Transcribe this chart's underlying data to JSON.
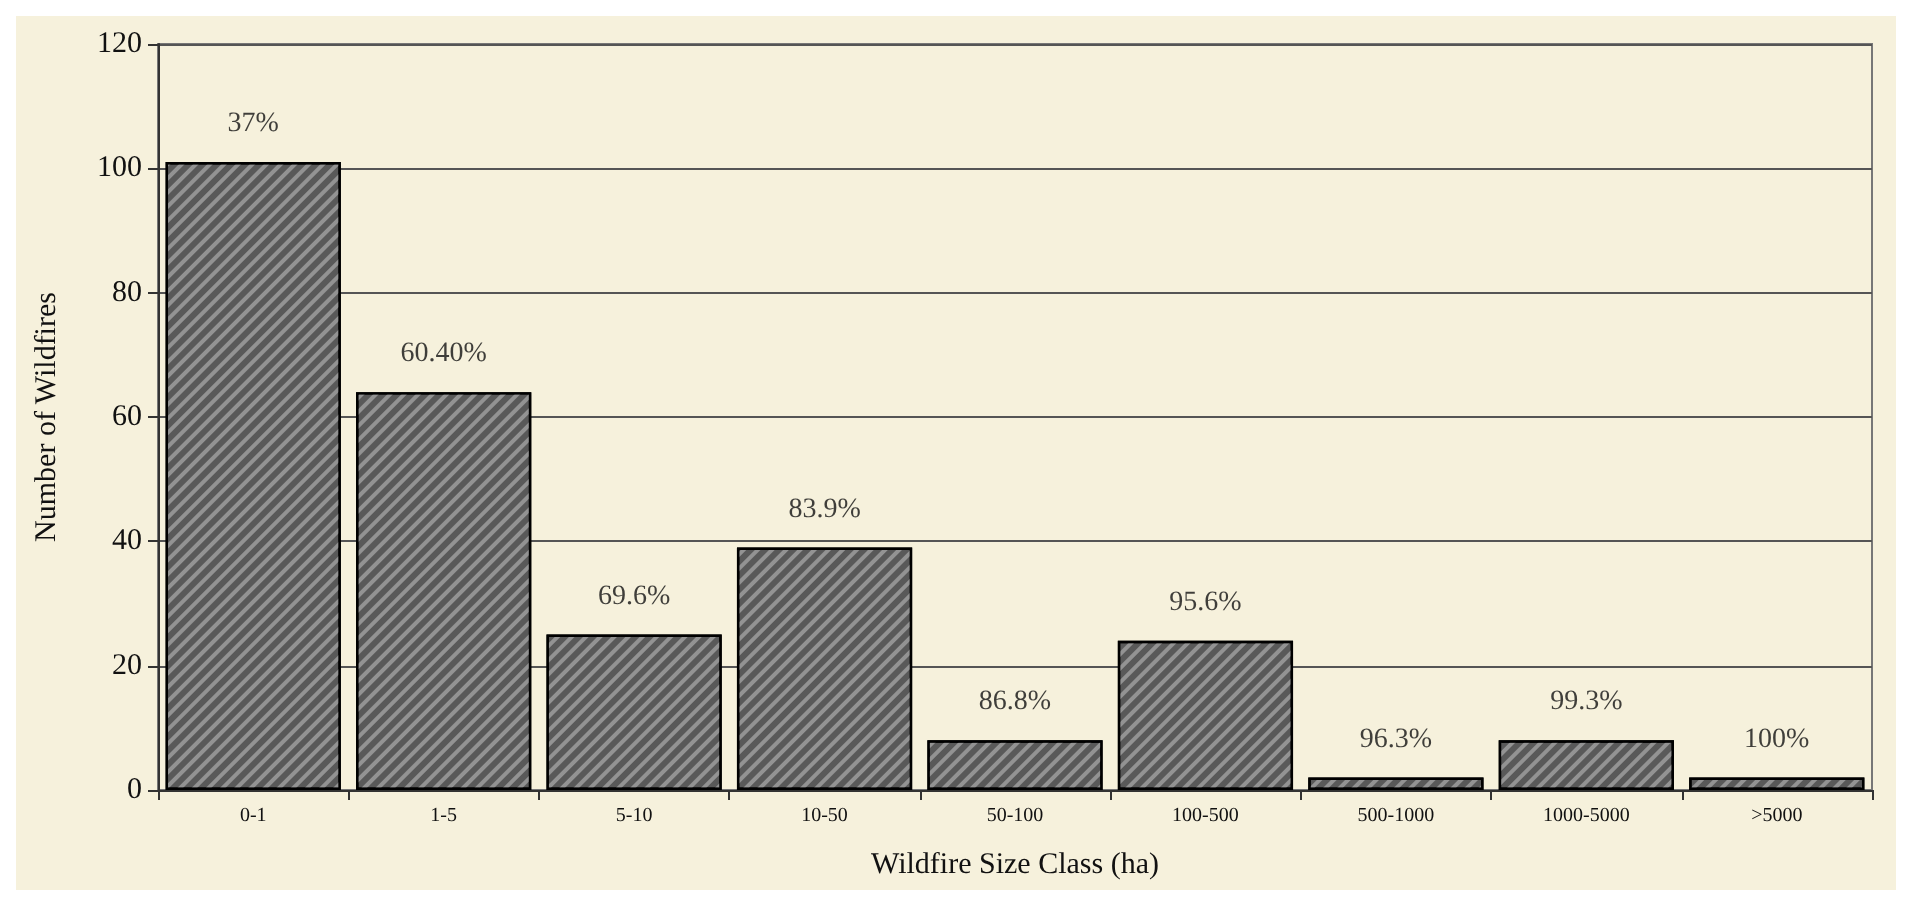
{
  "chart_data": {
    "type": "bar",
    "xlabel": "Wildfire Size Class (ha)",
    "ylabel": "Number of Wildfires",
    "categories": [
      "0-1",
      "1-5",
      "5-10",
      "10-50",
      "50-100",
      "100-500",
      "500-1000",
      "1000-5000",
      ">5000"
    ],
    "values": [
      101,
      64,
      25,
      39,
      8,
      24,
      2,
      8,
      2
    ],
    "annotations": [
      {
        "text": "37%",
        "x": "0-1",
        "y": 101
      },
      {
        "text": "60.40%",
        "x": "1-5",
        "y": 64
      },
      {
        "text": "69.6%",
        "x": "5-10",
        "y": 25
      },
      {
        "text": "83.9%",
        "x": "10-50",
        "y": 39
      },
      {
        "text": "86.8%",
        "x": "50-100",
        "y": 8
      },
      {
        "text": "95.6%",
        "x": "100-500",
        "y": 24
      },
      {
        "text": "96.3%",
        "x": "500-1000",
        "y": 2
      },
      {
        "text": "99.3%",
        "x": "1000-5000",
        "y": 8
      },
      {
        "text": "100%",
        "x": ">5000",
        "y": 2
      }
    ],
    "color": "#595959",
    "ylim": [
      0,
      120
    ],
    "yticks": [
      0,
      20,
      40,
      60,
      80,
      100,
      120
    ],
    "grid": "y"
  }
}
